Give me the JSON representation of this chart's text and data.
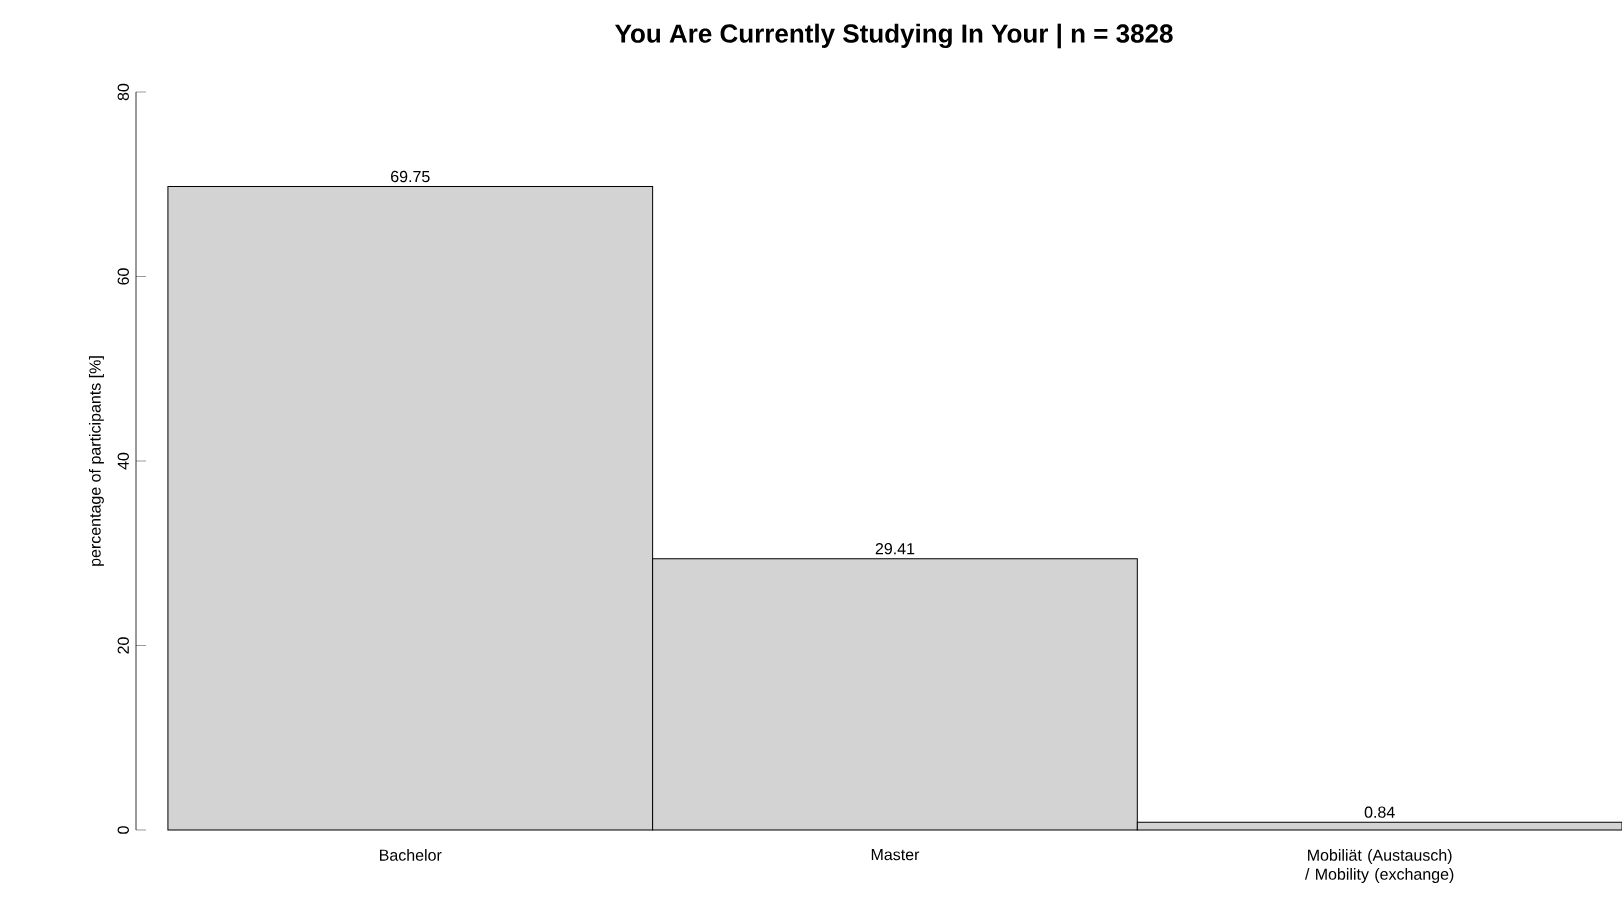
{
  "chart_data": {
    "type": "bar",
    "title": "You Are Currently Studying In Your  | n = 3828",
    "ylabel": "percentage of participants [%]",
    "categories": [
      "Bachelor",
      "Master",
      "Mobiliät (Austausch) / Mobility (exchange)"
    ],
    "values": [
      69.75,
      29.41,
      0.84
    ],
    "color": "#d3d3d3",
    "ylim": [
      0,
      80
    ],
    "yticks": [
      0,
      20,
      40,
      60,
      80
    ],
    "data_labels": true,
    "grid": false
  }
}
